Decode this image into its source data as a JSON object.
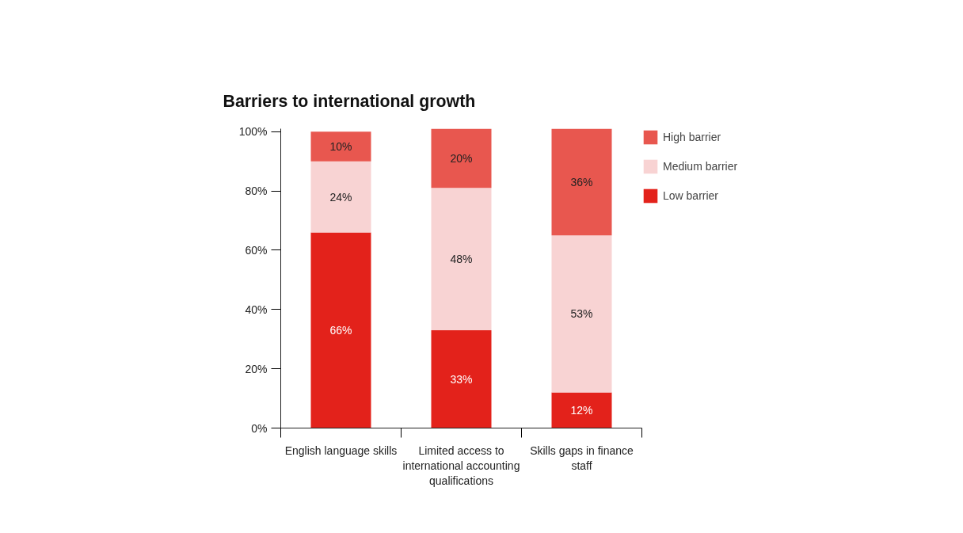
{
  "chart_data": {
    "type": "bar",
    "stacked": true,
    "title": "Barriers to international growth",
    "categories": [
      "English language skills",
      "Limited access to international accounting qualifications",
      "Skills gaps in finance staff"
    ],
    "series": [
      {
        "name": "Low barrier",
        "color": "#e3221b",
        "values": [
          66,
          33,
          12
        ],
        "value_labels": [
          "66%",
          "33%",
          "12%"
        ]
      },
      {
        "name": "Medium barrier",
        "color": "#f8d3d3",
        "values": [
          24,
          48,
          53
        ],
        "value_labels": [
          "24%",
          "48%",
          "53%"
        ]
      },
      {
        "name": "High barrier",
        "color": "#e8574f",
        "values": [
          10,
          20,
          36
        ],
        "value_labels": [
          "10%",
          "20%",
          "36%"
        ]
      }
    ],
    "ylim": [
      0,
      101
    ],
    "yticks": [
      {
        "value": 0,
        "label": "0%"
      },
      {
        "value": 20,
        "label": "20%"
      },
      {
        "value": 40,
        "label": "40%"
      },
      {
        "value": 60,
        "label": "60%"
      },
      {
        "value": 80,
        "label": "80%"
      },
      {
        "value": 100,
        "label": "100%"
      }
    ],
    "grid": false,
    "legend": "top right"
  }
}
